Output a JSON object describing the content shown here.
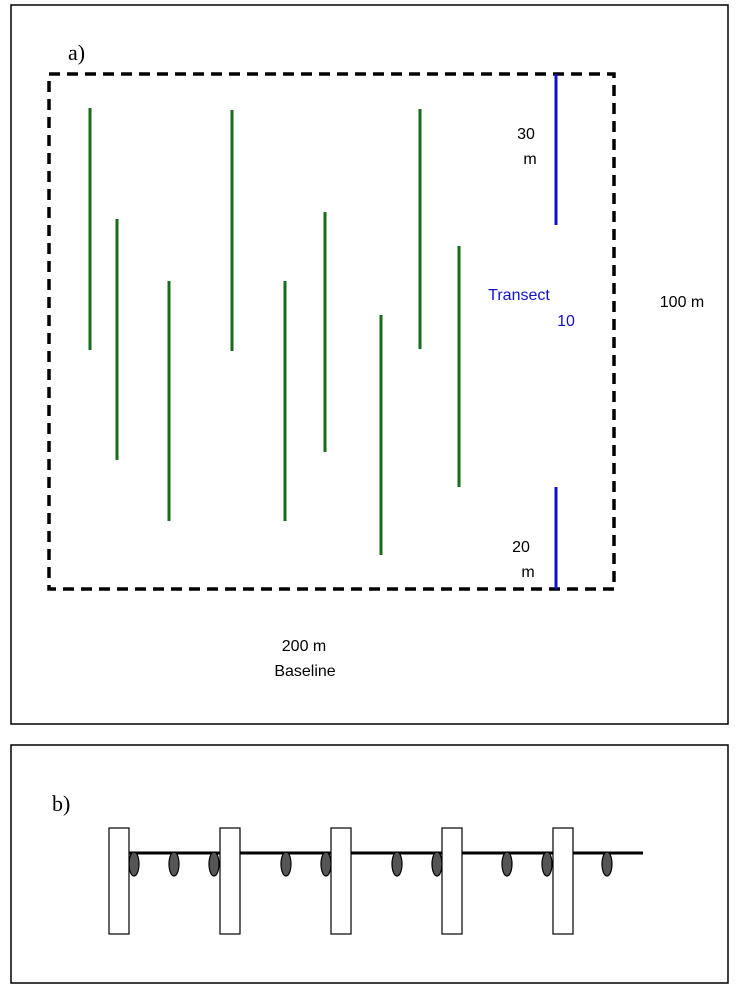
{
  "panel_a": {
    "label": "a)",
    "plot_outline_color": "#000000",
    "transect_color": "#1a6b1a",
    "highlight_color": "#1111cc",
    "label_top_length": "30",
    "label_top_unit": "m",
    "label_transect_word": "Transect",
    "label_transect_number": "10",
    "label_bottom_length": "20",
    "label_bottom_unit": "m",
    "label_height": "100 m",
    "label_baseline_length": "200 m",
    "label_baseline": "Baseline"
  },
  "panel_b": {
    "label": "b)",
    "line_color": "#000000",
    "post_fill": "#ffffff",
    "ellipse_fill": "#555555"
  }
}
